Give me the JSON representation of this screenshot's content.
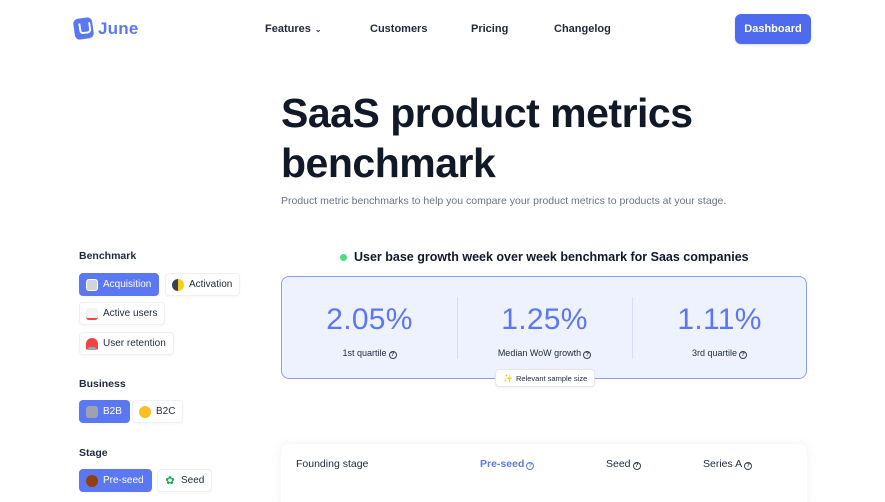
{
  "brand": {
    "name": "June"
  },
  "nav": {
    "features": "Features",
    "customers": "Customers",
    "pricing": "Pricing",
    "changelog": "Changelog",
    "dashboard": "Dashboard"
  },
  "hero": {
    "title": "SaaS product metrics benchmark",
    "subtitle": "Product metric benchmarks to help you compare your product metrics to products at your stage."
  },
  "sidebar": {
    "benchmark_heading": "Benchmark",
    "benchmark_items": [
      "Acquisition",
      "Activation",
      "Active users",
      "User retention"
    ],
    "benchmark_selected": "Acquisition",
    "business_heading": "Business",
    "business_items": [
      "B2B",
      "B2C"
    ],
    "business_selected": "B2B",
    "stage_heading": "Stage",
    "stage_items": [
      "Pre-seed",
      "Seed"
    ],
    "stage_selected": "Pre-seed"
  },
  "benchmark": {
    "title": "User base growth week over week benchmark for Saas companies",
    "stats": [
      {
        "value": "2.05%",
        "label": "1st quartile"
      },
      {
        "value": "1.25%",
        "label": "Median WoW growth"
      },
      {
        "value": "1.11%",
        "label": "3rd quartile"
      }
    ],
    "sample_label": "Relevant sample size"
  },
  "table": {
    "headers": [
      "Founding stage",
      "Pre-seed",
      "Seed",
      "Series A"
    ],
    "active_header": "Pre-seed"
  },
  "colors": {
    "accent": "#5b78f2",
    "button": "#4f6bed",
    "card_bg": "#eef1fe",
    "card_border": "#8b9cf5",
    "status_dot": "#4ade80"
  }
}
